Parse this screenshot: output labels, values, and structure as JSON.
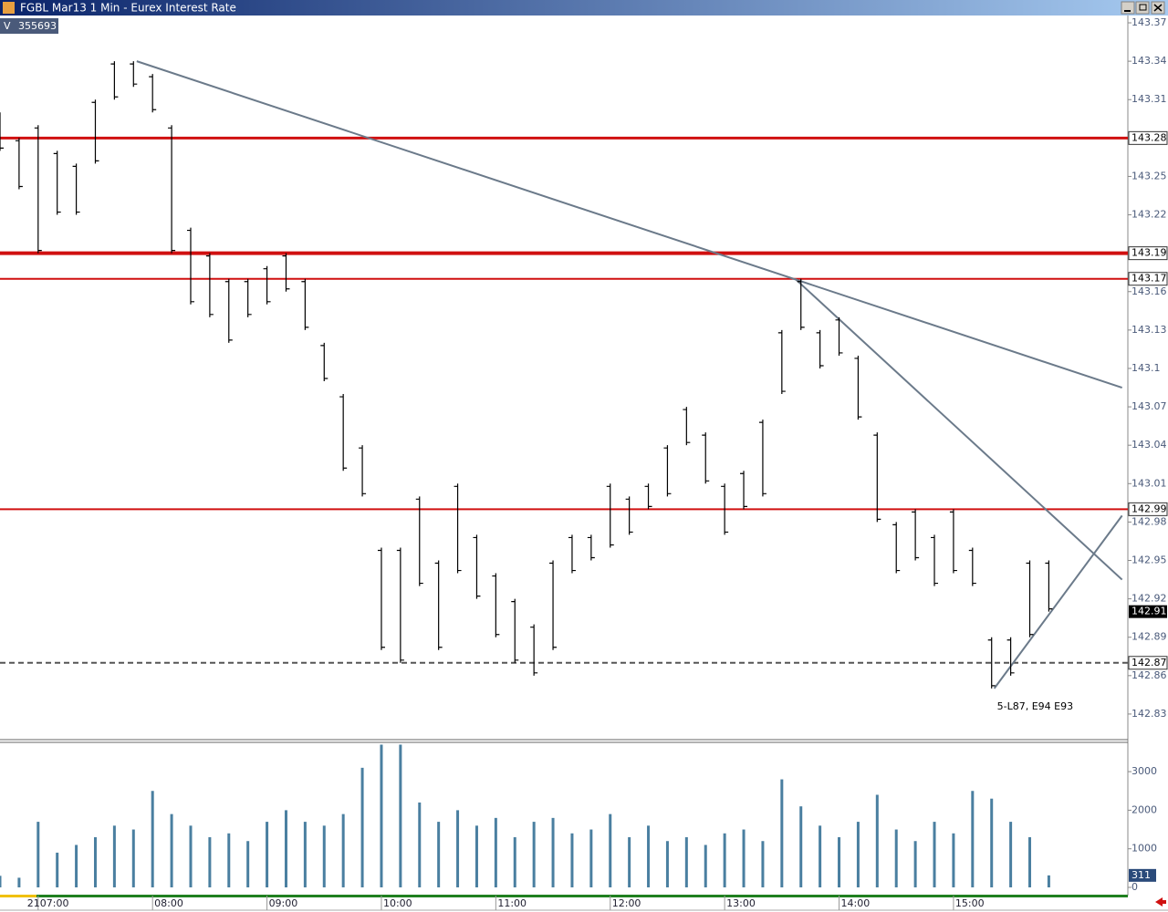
{
  "chart_data": {
    "type": "hlbar",
    "title": "FGBL Mar13 1 Min - Eurex Interest Rate",
    "volume_label": "V",
    "volume_total": "355693",
    "annotation": "5-L87, E94 E93",
    "date_label": "21",
    "xlim": [
      400,
      990
    ],
    "xticks": [
      {
        "value": 420,
        "label": "07:00"
      },
      {
        "value": 480,
        "label": "08:00"
      },
      {
        "value": 540,
        "label": "09:00"
      },
      {
        "value": 600,
        "label": "10:00"
      },
      {
        "value": 660,
        "label": "11:00"
      },
      {
        "value": 720,
        "label": "12:00"
      },
      {
        "value": 780,
        "label": "13:00"
      },
      {
        "value": 840,
        "label": "14:00"
      },
      {
        "value": 900,
        "label": "15:00"
      }
    ],
    "ylim": [
      142.81,
      143.375
    ],
    "yticks": [
      142.83,
      142.86,
      142.89,
      142.92,
      142.95,
      142.98,
      143.01,
      143.04,
      143.07,
      143.1,
      143.13,
      143.16,
      143.19,
      143.22,
      143.25,
      143.28,
      143.31,
      143.34,
      143.37
    ],
    "color": "#000000",
    "x": [
      400,
      410,
      420,
      430,
      440,
      450,
      460,
      470,
      480,
      490,
      500,
      510,
      520,
      530,
      540,
      550,
      560,
      570,
      580,
      590,
      600,
      610,
      620,
      630,
      640,
      650,
      660,
      670,
      680,
      690,
      700,
      710,
      720,
      730,
      740,
      750,
      760,
      770,
      780,
      790,
      800,
      810,
      820,
      830,
      840,
      850,
      860,
      870,
      880,
      890,
      900,
      910,
      920,
      930,
      940,
      950
    ],
    "high": [
      143.3,
      143.28,
      143.29,
      143.27,
      143.26,
      143.31,
      143.34,
      143.34,
      143.33,
      143.29,
      143.21,
      143.19,
      143.17,
      143.17,
      143.18,
      143.19,
      143.17,
      143.12,
      143.08,
      143.04,
      142.96,
      142.96,
      143.0,
      142.95,
      143.01,
      142.97,
      142.94,
      142.92,
      142.9,
      142.95,
      142.97,
      142.97,
      143.01,
      143.0,
      143.01,
      143.04,
      143.07,
      143.05,
      143.01,
      143.02,
      143.06,
      143.13,
      143.17,
      143.13,
      143.14,
      143.11,
      143.05,
      142.98,
      142.99,
      142.97,
      142.99,
      142.96,
      142.89,
      142.89,
      142.95,
      142.95
    ],
    "low": [
      143.27,
      143.24,
      143.19,
      143.22,
      143.22,
      143.26,
      143.31,
      143.32,
      143.3,
      143.19,
      143.15,
      143.14,
      143.12,
      143.14,
      143.15,
      143.16,
      143.13,
      143.09,
      143.02,
      143.0,
      142.88,
      142.87,
      142.93,
      142.88,
      142.94,
      142.92,
      142.89,
      142.87,
      142.86,
      142.88,
      142.94,
      142.95,
      142.96,
      142.97,
      142.99,
      143.0,
      143.04,
      143.01,
      142.97,
      142.99,
      143.0,
      143.08,
      143.13,
      143.1,
      143.11,
      143.06,
      142.98,
      142.94,
      142.95,
      142.93,
      142.94,
      142.93,
      142.85,
      142.86,
      142.89,
      142.91
    ],
    "last_price": 142.91,
    "levels": [
      {
        "value": 143.28,
        "color": "#d01010",
        "width": 3
      },
      {
        "value": 143.19,
        "color": "#d01010",
        "width": 4
      },
      {
        "value": 143.17,
        "color": "#d01010",
        "width": 2
      },
      {
        "value": 142.99,
        "color": "#d01010",
        "width": 2
      },
      {
        "value": 142.87,
        "color": "#555555",
        "width": 2,
        "dashed": true
      }
    ],
    "trendlines": [
      {
        "x": [
          471.7,
          988.4
        ],
        "y": [
          143.34,
          143.085
        ]
      },
      {
        "x": [
          817,
          988.4
        ],
        "y": [
          143.17,
          142.935
        ]
      },
      {
        "x": [
          921.4,
          988.4
        ],
        "y": [
          142.85,
          142.985
        ]
      }
    ],
    "volume": {
      "color": "#4a7fa0",
      "ylim": [
        0,
        3735
      ],
      "yticks": [
        0,
        1000,
        2000,
        3000
      ],
      "last": 311,
      "values": [
        300,
        250,
        1700,
        900,
        1100,
        1300,
        1600,
        1500,
        2500,
        1900,
        1600,
        1300,
        1400,
        1200,
        1700,
        2000,
        1700,
        1600,
        1900,
        3100,
        3700,
        3700,
        2200,
        1700,
        2000,
        1600,
        1800,
        1300,
        1700,
        1800,
        1400,
        1500,
        1900,
        1300,
        1600,
        1200,
        1300,
        1100,
        1400,
        1500,
        1200,
        2800,
        2100,
        1600,
        1300,
        1700,
        2400,
        1500,
        1200,
        1700,
        1400,
        2500,
        2300,
        1700,
        1300,
        311
      ]
    }
  }
}
